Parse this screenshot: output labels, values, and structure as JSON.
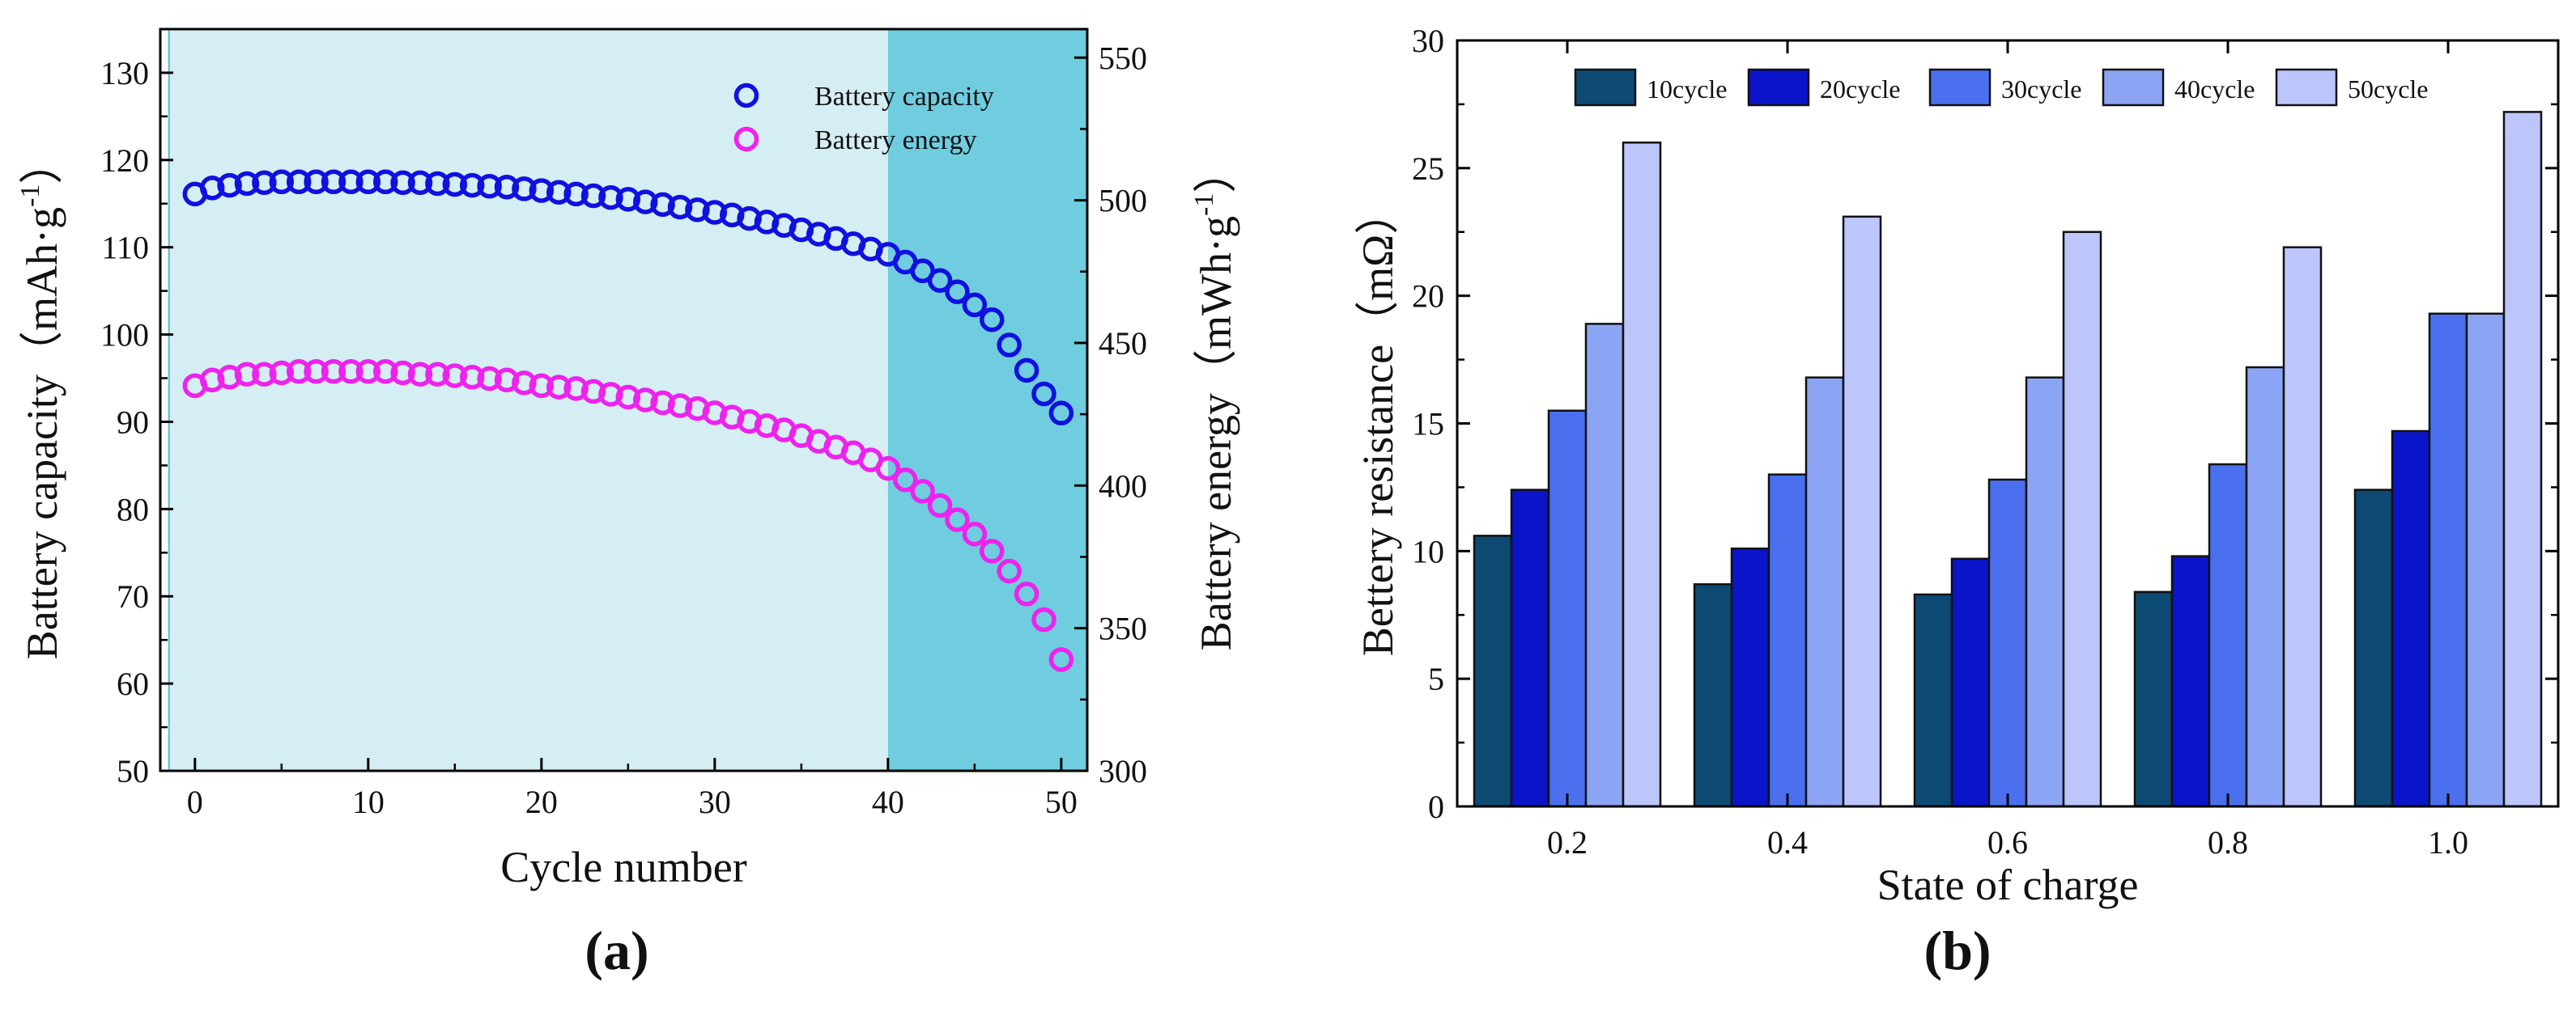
{
  "panel_labels": {
    "a": "(a)",
    "b": "(b)"
  },
  "chart_data": [
    {
      "id": "a",
      "type": "scatter",
      "xlabel": "Cycle number",
      "ylabel": "Battery capacity",
      "ylabel_unit": "（mAh·g",
      "y2label": "Battery energy",
      "y2label_unit": "（mWh·g",
      "unit_exponent": "-1",
      "unit_close": "）",
      "xlim": [
        -2,
        51.5
      ],
      "ylim": [
        50,
        135
      ],
      "y2lim": [
        300,
        560
      ],
      "xticks": [
        0,
        10,
        20,
        30,
        40,
        50
      ],
      "yticks": [
        50,
        60,
        70,
        80,
        90,
        100,
        110,
        120,
        130
      ],
      "y2ticks": [
        300,
        350,
        400,
        450,
        500,
        550
      ],
      "regions": [
        {
          "from": -1.5,
          "to": 40,
          "color": "#d4eef3"
        },
        {
          "from": 40,
          "to": 51.5,
          "color": "#6fcddf"
        }
      ],
      "legend_position": "top-right",
      "x": [
        0,
        1,
        2,
        3,
        4,
        5,
        6,
        7,
        8,
        9,
        10,
        11,
        12,
        13,
        14,
        15,
        16,
        17,
        18,
        19,
        20,
        21,
        22,
        23,
        24,
        25,
        26,
        27,
        28,
        29,
        30,
        31,
        32,
        33,
        34,
        35,
        36,
        37,
        38,
        39,
        40,
        41,
        42,
        43,
        44,
        45,
        46,
        47,
        48,
        49,
        50
      ],
      "series": [
        {
          "name": "Battery capacity",
          "axis": "left",
          "color": "#1010e0",
          "values": [
            116.1,
            116.8,
            117.1,
            117.3,
            117.4,
            117.5,
            117.5,
            117.5,
            117.5,
            117.5,
            117.5,
            117.5,
            117.4,
            117.4,
            117.3,
            117.2,
            117.1,
            117.0,
            116.9,
            116.7,
            116.5,
            116.3,
            116.1,
            115.9,
            115.7,
            115.5,
            115.2,
            114.9,
            114.6,
            114.3,
            114.0,
            113.7,
            113.3,
            112.9,
            112.5,
            112.0,
            111.5,
            111.0,
            110.4,
            109.8,
            109.2,
            108.3,
            107.3,
            106.2,
            104.9,
            103.4,
            101.7,
            98.8,
            95.9,
            93.2,
            91.0
          ]
        },
        {
          "name": "Battery energy",
          "axis": "right",
          "color": "#ee22ee",
          "values": [
            435,
            437,
            438,
            439,
            439,
            439.5,
            440,
            440,
            440,
            440,
            440,
            440,
            439.5,
            439,
            439,
            438.5,
            438,
            437.5,
            437,
            436,
            435,
            434.5,
            434,
            433,
            432,
            431,
            430,
            429,
            428,
            427,
            425.5,
            424,
            422.5,
            421,
            419.5,
            417.5,
            415.5,
            413.5,
            411.5,
            409,
            406,
            402,
            398,
            393,
            388,
            383,
            377,
            370,
            362,
            353,
            339
          ]
        }
      ]
    },
    {
      "id": "b",
      "type": "bar",
      "xlabel": "State of charge",
      "ylabel": "Bettery resistance（mΩ）",
      "categories": [
        "0.2",
        "0.4",
        "0.6",
        "0.8",
        "1.0"
      ],
      "ylim": [
        0,
        30
      ],
      "yticks": [
        0,
        5,
        10,
        15,
        20,
        25,
        30
      ],
      "legend_position": "top",
      "series": [
        {
          "name": "10cycle",
          "color": "#0d4a73",
          "values": [
            10.6,
            8.7,
            8.3,
            8.4,
            12.4
          ]
        },
        {
          "name": "20cycle",
          "color": "#0a14c8",
          "values": [
            12.4,
            10.1,
            9.7,
            9.8,
            14.7
          ]
        },
        {
          "name": "30cycle",
          "color": "#4a70f0",
          "values": [
            15.5,
            13.0,
            12.8,
            13.4,
            19.3
          ]
        },
        {
          "name": "40cycle",
          "color": "#8ca4f4",
          "values": [
            18.9,
            16.8,
            16.8,
            17.2,
            19.3
          ]
        },
        {
          "name": "50cycle",
          "color": "#bcc6fa",
          "values": [
            26.0,
            23.1,
            22.5,
            21.9,
            27.2
          ]
        }
      ]
    }
  ]
}
